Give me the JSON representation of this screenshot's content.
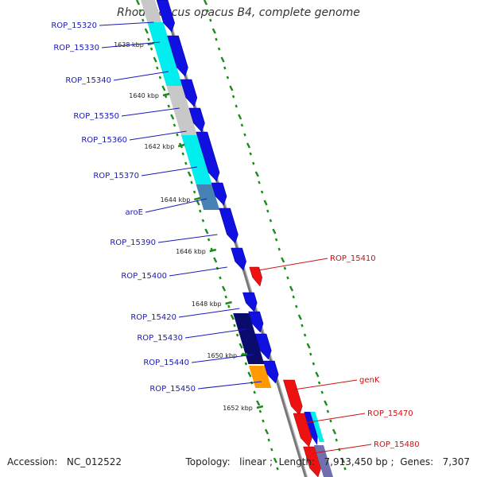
{
  "title": "Rhodococcus opacus B4, complete genome",
  "footer": {
    "accession_label": "Accession:",
    "accession": "NC_012522",
    "topology_label": "Topology:",
    "topology": "linear",
    "length_label": "Length:",
    "length": "7,913,450 bp",
    "genes_label": "Genes:",
    "genes": "7,307"
  },
  "colors": {
    "gene_blue": "#1010e0",
    "gene_red": "#ee1111",
    "cyan": "#00eeee",
    "gray": "#c8c8c8",
    "steel": "#4682b4",
    "navy": "#0b0b6e",
    "orange": "#ff9900",
    "backbone": "#888888",
    "tick_green": "#1a8a1a",
    "label_blue": "#1a1ab8",
    "label_red": "#cc1111"
  },
  "ticks": [
    {
      "label": "1638 kbp"
    },
    {
      "label": "1640 kbp"
    },
    {
      "label": "1642 kbp"
    },
    {
      "label": "1644 kbp"
    },
    {
      "label": "1646 kbp"
    },
    {
      "label": "1648 kbp"
    },
    {
      "label": "1650 kbp"
    },
    {
      "label": "1652 kbp"
    }
  ],
  "labels_left": [
    "ROP_15320",
    "ROP_15330",
    "ROP_15340",
    "ROP_15350",
    "ROP_15360",
    "ROP_15370",
    "aroE",
    "ROP_15390",
    "ROP_15400",
    "ROP_15420",
    "ROP_15430",
    "ROP_15440",
    "ROP_15450"
  ],
  "labels_right": [
    "ROP_15410",
    "genK",
    "ROP_15470",
    "ROP_15480"
  ]
}
